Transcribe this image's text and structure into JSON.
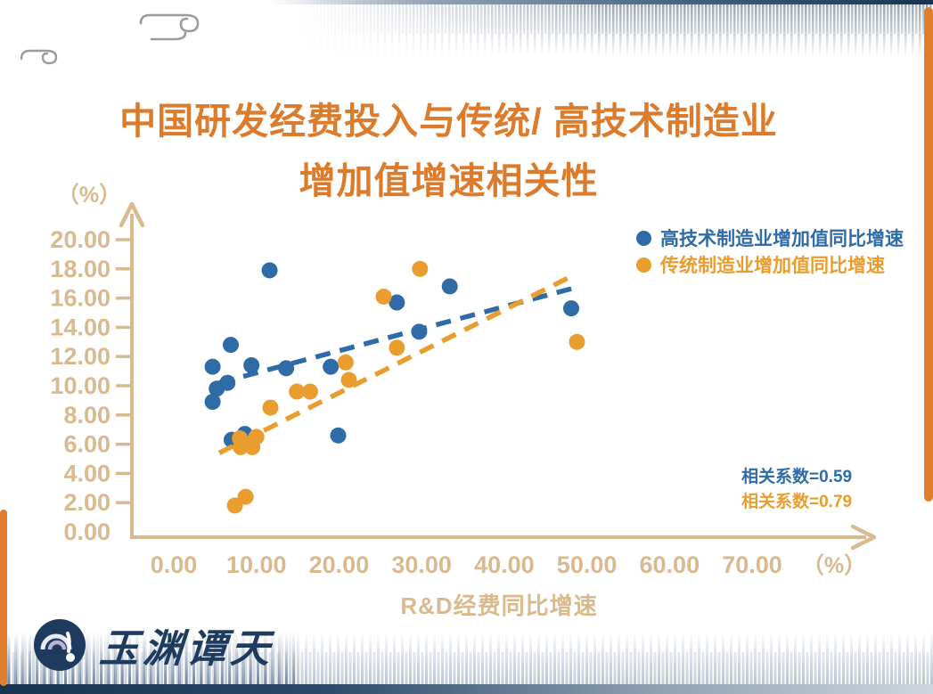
{
  "page": {
    "title_line1": "中国研发经费投入与传统/ 高技术制造业",
    "title_line2": "增加值增速相关性",
    "logo_text": "玉渊谭天"
  },
  "chart_data": {
    "type": "scatter",
    "title": "中国研发经费投入与传统/高技术制造业增加值增速相关性",
    "xlabel": "R&D经费同比增速",
    "x_unit": "（%）",
    "y_unit": "（%）",
    "xlim": [
      0,
      70
    ],
    "ylim": [
      0,
      20
    ],
    "x_ticks": [
      "0.00",
      "10.00",
      "20.00",
      "30.00",
      "40.00",
      "50.00",
      "60.00",
      "70.00"
    ],
    "y_ticks": [
      "20.00",
      "18.00",
      "16.00",
      "14.00",
      "12.00",
      "10.00",
      "8.00",
      "6.00",
      "4.00",
      "2.00",
      "0.00"
    ],
    "grid": false,
    "legend_position": "top-right",
    "series": [
      {
        "name": "高技术制造业增加值同比增速",
        "color": "#2e6ba7",
        "correlation_label": "相关系数=0.59",
        "points": [
          [
            11.6,
            17.9
          ],
          [
            33.4,
            16.8
          ],
          [
            27.0,
            15.7
          ],
          [
            48.1,
            15.3
          ],
          [
            29.7,
            13.7
          ],
          [
            6.9,
            12.8
          ],
          [
            9.4,
            11.4
          ],
          [
            4.7,
            11.3
          ],
          [
            13.6,
            11.2
          ],
          [
            19.0,
            11.3
          ],
          [
            6.5,
            10.2
          ],
          [
            5.2,
            9.8
          ],
          [
            4.7,
            8.9
          ],
          [
            8.6,
            6.7
          ],
          [
            19.9,
            6.6
          ],
          [
            7.0,
            6.3
          ]
        ],
        "trend": {
          "x1": 5.5,
          "y1": 10.2,
          "x2": 48.5,
          "y2": 16.7
        }
      },
      {
        "name": "传统制造业增加值同比增速",
        "color": "#ea9d2f",
        "correlation_label": "相关系数=0.79",
        "points": [
          [
            29.8,
            18.0
          ],
          [
            25.4,
            16.1
          ],
          [
            48.8,
            13.0
          ],
          [
            27.0,
            12.6
          ],
          [
            20.8,
            11.6
          ],
          [
            21.2,
            10.4
          ],
          [
            14.9,
            9.6
          ],
          [
            16.5,
            9.6
          ],
          [
            11.7,
            8.5
          ],
          [
            10.0,
            6.5
          ],
          [
            8.0,
            6.4
          ],
          [
            9.5,
            5.8
          ],
          [
            8.1,
            5.8
          ],
          [
            8.7,
            2.4
          ],
          [
            7.4,
            1.8
          ]
        ],
        "trend": {
          "x1": 5.5,
          "y1": 5.4,
          "x2": 47.8,
          "y2": 17.4
        }
      }
    ]
  },
  "colors": {
    "title_orange": "#db7b2b",
    "axis_tan": "#d9b98e",
    "hightech_blue": "#2e6ba7",
    "traditional_orange": "#ea9d2f",
    "navy": "#1f3a5f",
    "frame_orange": "#e07e2c"
  }
}
